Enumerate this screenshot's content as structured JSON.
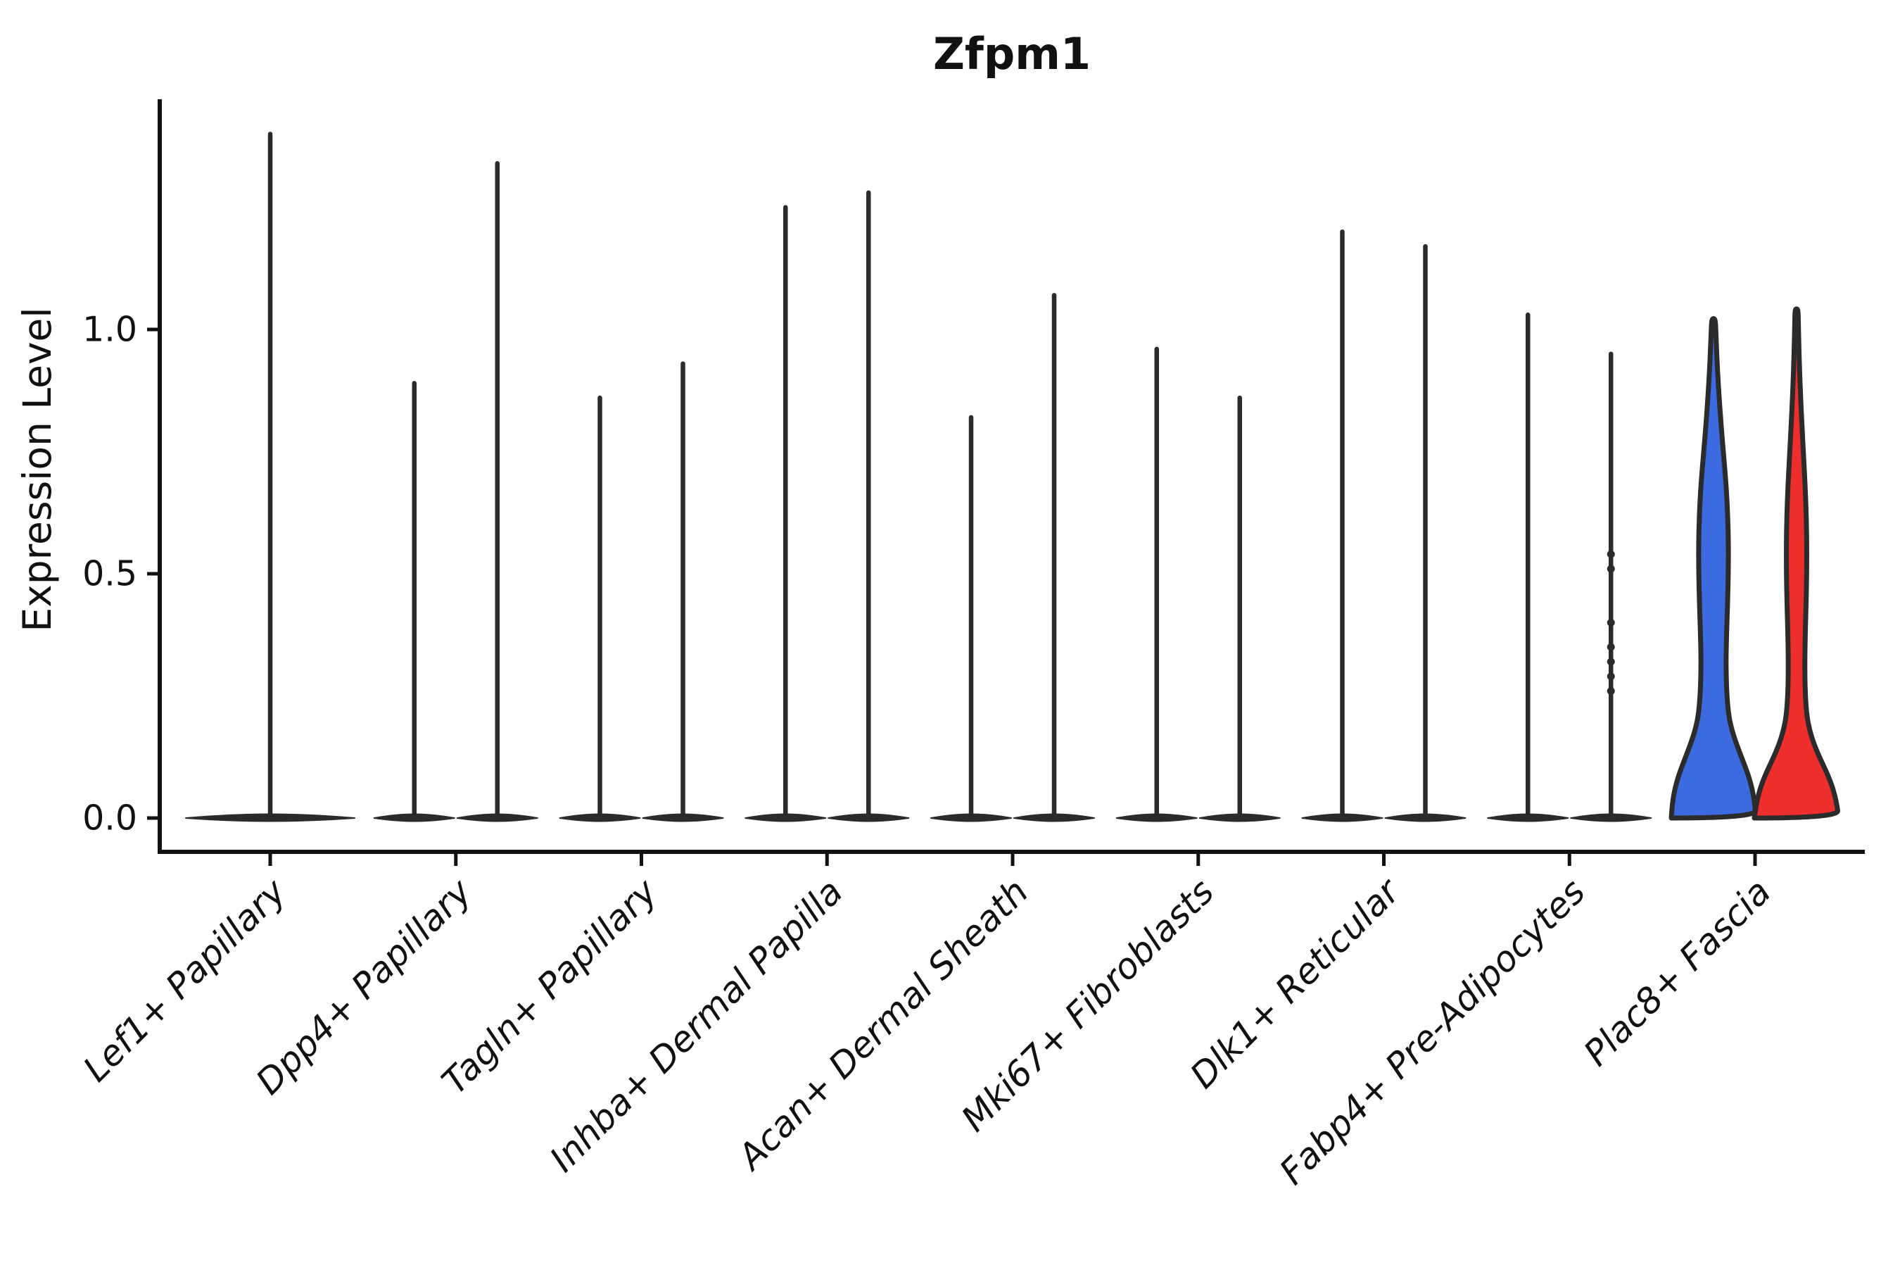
{
  "chart_data": {
    "type": "violin",
    "title": "Zfpm1",
    "ylabel": "Expression Level",
    "xlabel": "",
    "ylim": [
      0,
      1.47
    ],
    "grid": false,
    "legend": null,
    "yticks": [
      {
        "value": 0.0,
        "label": "0.0"
      },
      {
        "value": 0.5,
        "label": "0.5"
      },
      {
        "value": 1.0,
        "label": "1.0"
      }
    ],
    "style": {
      "background": "#ffffff",
      "axis_color": "#111111",
      "violin_outline": "#2b2b2b",
      "blue_fill": "#3c6ae0",
      "red_fill": "#ee2d2d"
    },
    "categories": [
      {
        "label": "Lef1+ Papillary",
        "violins": [
          {
            "side": "full",
            "max": 1.4,
            "fill": "none"
          }
        ]
      },
      {
        "label": "Dpp4+ Papillary",
        "violins": [
          {
            "side": "left",
            "max": 0.89,
            "fill": "none"
          },
          {
            "side": "right",
            "max": 1.34,
            "fill": "none"
          }
        ]
      },
      {
        "label": "Tagln+ Papillary",
        "violins": [
          {
            "side": "left",
            "max": 0.86,
            "fill": "none"
          },
          {
            "side": "right",
            "max": 0.93,
            "fill": "none"
          }
        ]
      },
      {
        "label": "Inhba+ Dermal Papilla",
        "violins": [
          {
            "side": "left",
            "max": 1.25,
            "fill": "none"
          },
          {
            "side": "right",
            "max": 1.28,
            "fill": "none"
          }
        ]
      },
      {
        "label": "Acan+ Dermal Sheath",
        "violins": [
          {
            "side": "left",
            "max": 0.82,
            "fill": "none"
          },
          {
            "side": "right",
            "max": 1.07,
            "fill": "none"
          }
        ]
      },
      {
        "label": "Mki67+ Fibroblasts",
        "violins": [
          {
            "side": "left",
            "max": 0.96,
            "fill": "none"
          },
          {
            "side": "right",
            "max": 0.86,
            "fill": "none"
          }
        ]
      },
      {
        "label": "Dlk1+ Reticular",
        "violins": [
          {
            "side": "left",
            "max": 1.2,
            "fill": "none"
          },
          {
            "side": "right",
            "max": 1.17,
            "fill": "none"
          }
        ]
      },
      {
        "label": "Fabp4+ Pre-Adipocytes",
        "violins": [
          {
            "side": "left",
            "max": 1.03,
            "fill": "none"
          },
          {
            "side": "right",
            "max": 0.95,
            "fill": "none",
            "points": [
              0.54,
              0.51,
              0.4,
              0.35,
              0.32,
              0.29,
              0.26
            ]
          }
        ]
      },
      {
        "label": "Plac8+ Fascia",
        "violins": [
          {
            "side": "left",
            "max": 1.02,
            "fill": "#3c6ae0",
            "profile": [
              [
                0.0,
                60
              ],
              [
                0.03,
                58.5
              ],
              [
                0.06,
                55
              ],
              [
                0.09,
                49
              ],
              [
                0.12,
                41
              ],
              [
                0.15,
                33
              ],
              [
                0.18,
                26
              ],
              [
                0.21,
                21.5
              ],
              [
                0.25,
                19
              ],
              [
                0.29,
                18
              ],
              [
                0.33,
                17.8
              ],
              [
                0.38,
                18.6
              ],
              [
                0.44,
                20
              ],
              [
                0.5,
                21
              ],
              [
                0.56,
                21.2
              ],
              [
                0.62,
                20.2
              ],
              [
                0.68,
                18
              ],
              [
                0.74,
                14.5
              ],
              [
                0.8,
                11
              ],
              [
                0.86,
                8
              ],
              [
                0.92,
                5.5
              ],
              [
                0.97,
                4
              ],
              [
                1.0,
                3.2
              ],
              [
                1.02,
                2.6
              ]
            ]
          },
          {
            "side": "right",
            "max": 1.04,
            "fill": "#ee2d2d",
            "profile": [
              [
                0.0,
                60
              ],
              [
                0.03,
                57
              ],
              [
                0.06,
                52
              ],
              [
                0.09,
                44
              ],
              [
                0.12,
                34
              ],
              [
                0.15,
                25
              ],
              [
                0.18,
                18.5
              ],
              [
                0.21,
                14.5
              ],
              [
                0.25,
                12.5
              ],
              [
                0.29,
                11.8
              ],
              [
                0.33,
                11.8
              ],
              [
                0.38,
                12.4
              ],
              [
                0.44,
                13.6
              ],
              [
                0.5,
                14.4
              ],
              [
                0.56,
                14.5
              ],
              [
                0.62,
                13.8
              ],
              [
                0.68,
                12.2
              ],
              [
                0.74,
                10
              ],
              [
                0.8,
                7.8
              ],
              [
                0.86,
                5.8
              ],
              [
                0.92,
                4.2
              ],
              [
                0.97,
                3.2
              ],
              [
                1.01,
                2.6
              ],
              [
                1.04,
                2.2
              ]
            ]
          }
        ]
      }
    ]
  }
}
